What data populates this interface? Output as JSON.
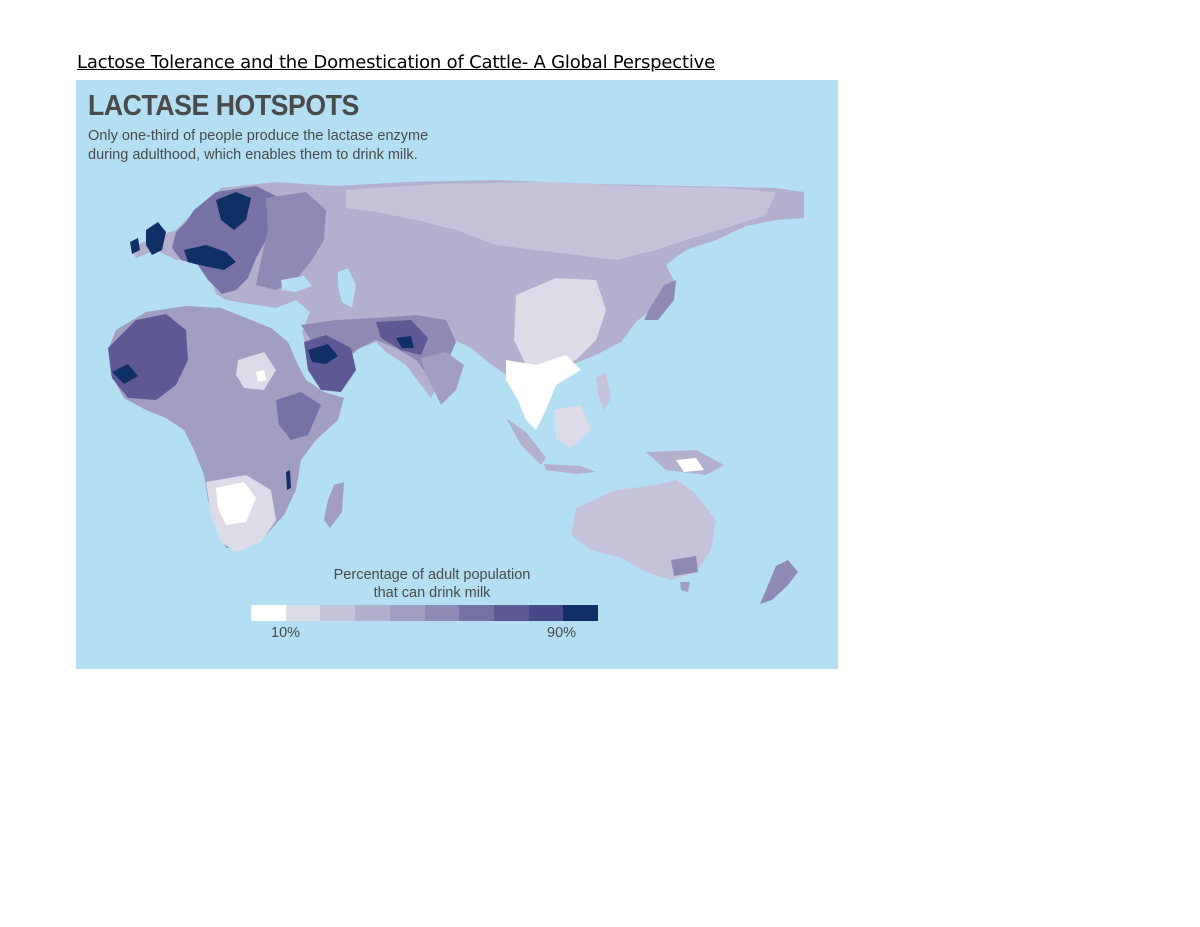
{
  "document": {
    "title": "Lactose Tolerance and the Domestication of Cattle- A Global Perspective"
  },
  "map": {
    "title": "LACTASE HOTSPOTS",
    "subtitle_lines": [
      "Only one-third of people produce the lactase enzyme",
      "during adulthood, which enables them to drink milk."
    ],
    "colors": {
      "ocean": "#b4def2",
      "scale": [
        "#ffffff",
        "#dcdbe8",
        "#c5c3da",
        "#b3b0cd",
        "#a19ec1",
        "#8e8ab4",
        "#7672a5",
        "#5e5994",
        "#464887",
        "#0f2f66"
      ]
    },
    "legend": {
      "title_lines": [
        "Percentage of adult population",
        "that can drink milk"
      ],
      "min_label": "10%",
      "max_label": "90%"
    }
  }
}
